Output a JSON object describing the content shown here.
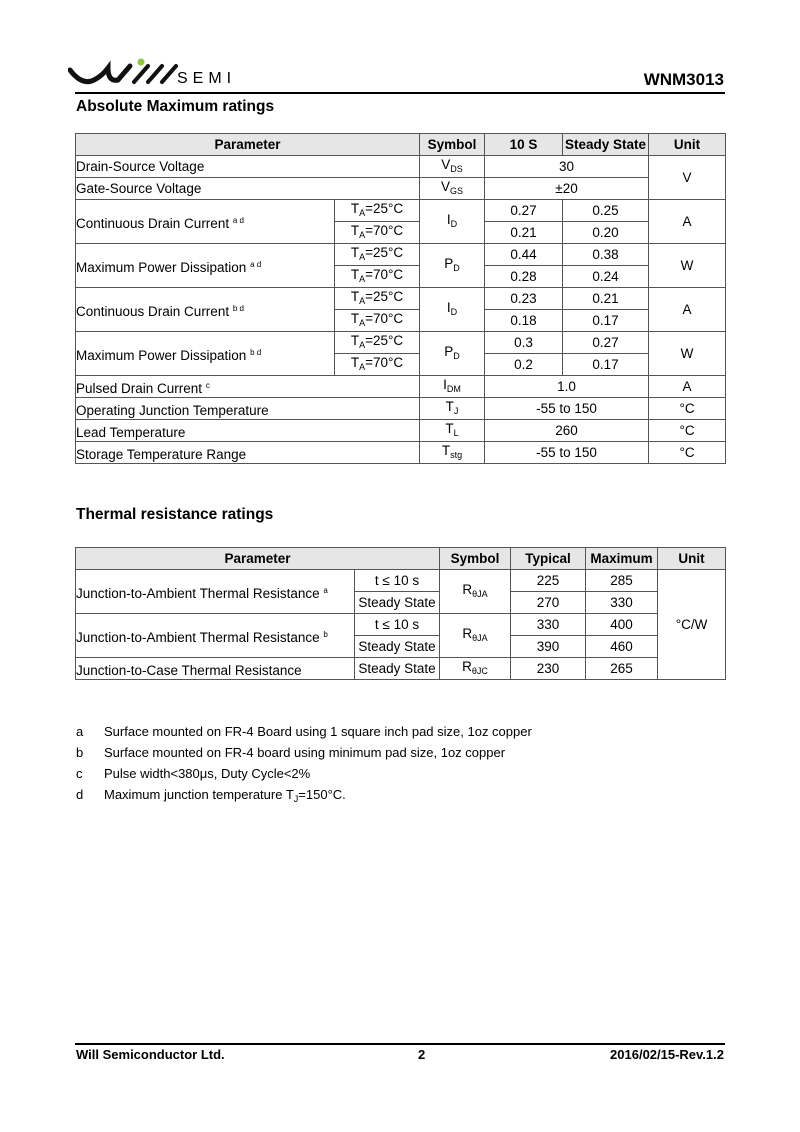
{
  "header": {
    "logo_text": "WILL SEMI",
    "semi": "SEMI",
    "part_number": "WNM3013",
    "logo_accent": "#8dc63f"
  },
  "abs_max": {
    "title": "Absolute Maximum ratings",
    "columns": [
      "Parameter",
      "Symbol",
      "10 S",
      "Steady State",
      "Unit"
    ],
    "rows": [
      {
        "param": "Drain-Source Voltage",
        "sym": "V",
        "sub": "DS",
        "value": "30",
        "unit": "V"
      },
      {
        "param": "Gate-Source Voltage",
        "sym": "V",
        "sub": "GS",
        "value": "±20"
      },
      {
        "param": "Continuous Drain Current",
        "note": "a d",
        "sym": "I",
        "sub": "D",
        "unit": "A",
        "cond": [
          {
            "t": "T",
            "s": "A",
            "r": "=25°C",
            "v10": "0.27",
            "vss": "0.25"
          },
          {
            "t": "T",
            "s": "A",
            "r": "=70°C",
            "v10": "0.21",
            "vss": "0.20"
          }
        ]
      },
      {
        "param": "Maximum Power Dissipation",
        "note": "a d",
        "sym": "P",
        "sub": "D",
        "unit": "W",
        "cond": [
          {
            "t": "T",
            "s": "A",
            "r": "=25°C",
            "v10": "0.44",
            "vss": "0.38"
          },
          {
            "t": "T",
            "s": "A",
            "r": "=70°C",
            "v10": "0.28",
            "vss": "0.24"
          }
        ]
      },
      {
        "param": "Continuous Drain Current",
        "note": "b d",
        "sym": "I",
        "sub": "D",
        "unit": "A",
        "cond": [
          {
            "t": "T",
            "s": "A",
            "r": "=25°C",
            "v10": "0.23",
            "vss": "0.21"
          },
          {
            "t": "T",
            "s": "A",
            "r": "=70°C",
            "v10": "0.18",
            "vss": "0.17"
          }
        ]
      },
      {
        "param": "Maximum Power Dissipation",
        "note": "b d",
        "sym": "P",
        "sub": "D",
        "unit": "W",
        "cond": [
          {
            "t": "T",
            "s": "A",
            "r": "=25°C",
            "v10": "0.3",
            "vss": "0.27"
          },
          {
            "t": "T",
            "s": "A",
            "r": "=70°C",
            "v10": "0.2",
            "vss": "0.17"
          }
        ]
      },
      {
        "param": "Pulsed Drain Current",
        "note": "c",
        "sym": "I",
        "sub": "DM",
        "value": "1.0",
        "unit": "A"
      },
      {
        "param": "Operating Junction Temperature",
        "sym": "T",
        "sub": "J",
        "value": "-55 to 150",
        "unit": "°C"
      },
      {
        "param": "Lead Temperature",
        "sym": "T",
        "sub": "L",
        "value": "260",
        "unit": "°C"
      },
      {
        "param": "Storage Temperature Range",
        "sym": "T",
        "sub": "stg",
        "value": "-55 to 150",
        "unit": "°C"
      }
    ]
  },
  "thermal": {
    "title": "Thermal resistance ratings",
    "columns": [
      "Parameter",
      "Symbol",
      "Typical",
      "Maximum",
      "Unit"
    ],
    "unit": "°C/W",
    "rows": [
      {
        "param": "Junction-to-Ambient Thermal Resistance",
        "note": "a",
        "sym": "R",
        "sub": "θJA",
        "cond": [
          {
            "c": "t ≤ 10 s",
            "typ": "225",
            "max": "285"
          },
          {
            "c": "Steady State",
            "typ": "270",
            "max": "330"
          }
        ]
      },
      {
        "param": "Junction-to-Ambient Thermal Resistance",
        "note": "b",
        "sym": "R",
        "sub": "θJA",
        "cond": [
          {
            "c": "t ≤ 10 s",
            "typ": "330",
            "max": "400"
          },
          {
            "c": "Steady State",
            "typ": "390",
            "max": "460"
          }
        ]
      },
      {
        "param": "Junction-to-Case Thermal Resistance",
        "sym": "R",
        "sub": "θJC",
        "cond": [
          {
            "c": "Steady State",
            "typ": "230",
            "max": "265"
          }
        ]
      }
    ]
  },
  "footnotes": [
    {
      "key": "a",
      "text": "Surface mounted on FR-4 Board using 1 square inch pad size, 1oz copper"
    },
    {
      "key": "b",
      "text": "Surface mounted on FR-4 board using minimum pad size, 1oz copper"
    },
    {
      "key": "c",
      "text": "Pulse width<380μs, Duty Cycle<2%"
    },
    {
      "key": "d",
      "pre": "Maximum junction temperature T",
      "sub": "J",
      "post": "=150°C."
    }
  ],
  "footer": {
    "company": "Will Semiconductor Ltd.",
    "page": "2",
    "revision": "2016/02/15-Rev.1.2"
  }
}
